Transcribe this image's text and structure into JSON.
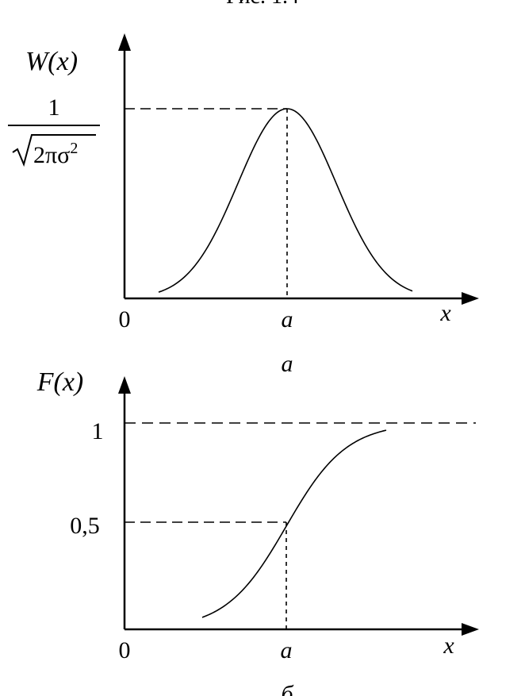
{
  "figure_caption": "Рис. 1.4",
  "chart_data": [
    {
      "type": "line",
      "panel_label": "а",
      "ylabel": "W(x)",
      "xlabel": "x",
      "y_tick_label": "1/√(2πσ²)",
      "y_tick_numerator": "1",
      "y_tick_denominator": "2πσ",
      "y_tick_denominator_exp": "2",
      "x_tick_labels": [
        "0",
        "a"
      ],
      "series": [
        {
          "values": "normal probability density, peak at x = a"
        }
      ],
      "reference_lines": "dashed lines from the peak to the y-axis and to x = a",
      "grid": false
    },
    {
      "type": "line",
      "panel_label": "б",
      "ylabel": "F(x)",
      "xlabel": "x",
      "y_tick_labels": [
        "1",
        "0,5"
      ],
      "x_tick_labels": [
        "0",
        "a"
      ],
      "series": [
        {
          "values": "normal cumulative distribution, 0.5 at x = a, tending to 1"
        }
      ],
      "reference_lines": "dashed horizontal line at 1, dashed lines from (a, 0.5) to both axes",
      "grid": false
    }
  ]
}
